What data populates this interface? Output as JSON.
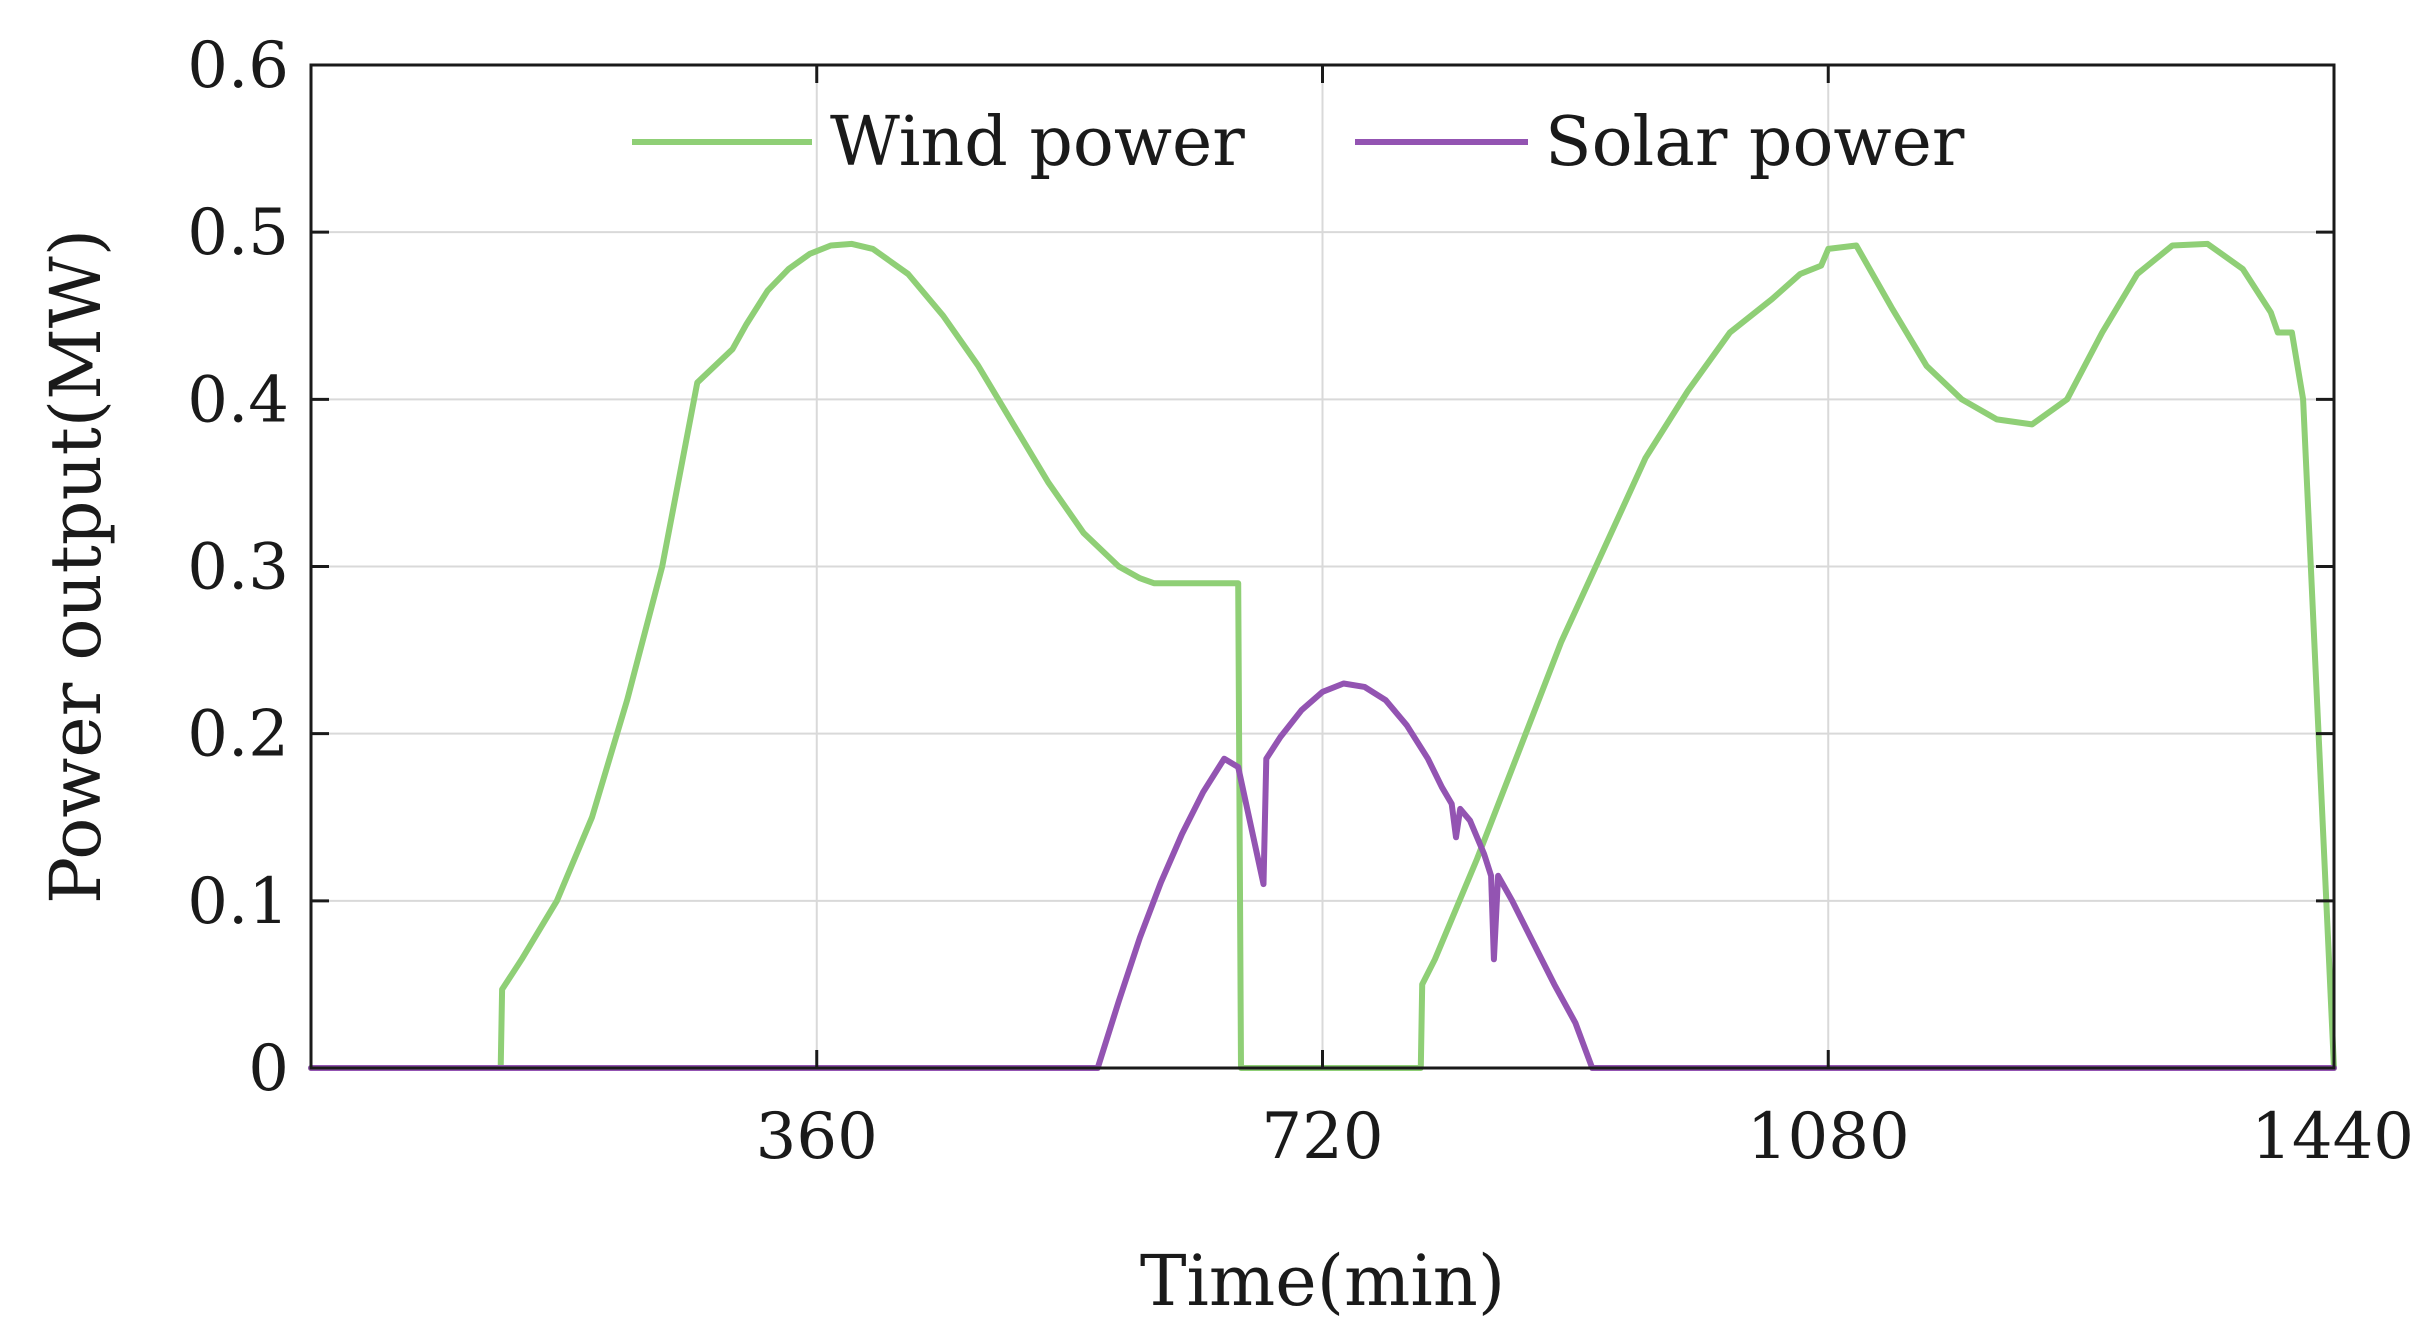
{
  "chart_data": {
    "type": "line",
    "xlabel": "Time(min)",
    "ylabel": "Power output(MW)",
    "xlim": [
      0,
      1440
    ],
    "ylim": [
      0,
      0.6
    ],
    "xticks": [
      360,
      720,
      1080,
      1440
    ],
    "xtick_labels": [
      "360",
      "720",
      "1080",
      "1440"
    ],
    "yticks": [
      0,
      0.1,
      0.2,
      0.3,
      0.4,
      0.5,
      0.6
    ],
    "ytick_labels": [
      "0",
      "0.1",
      "0.2",
      "0.3",
      "0.4",
      "0.5",
      "0.6"
    ],
    "grid": true,
    "legend": {
      "position": "top-center",
      "orientation": "horizontal"
    },
    "series": [
      {
        "name": "Wind power",
        "color": "#8fcf76",
        "x": [
          0,
          135,
          136,
          150,
          175,
          200,
          225,
          250,
          275,
          300,
          310,
          325,
          340,
          355,
          370,
          385,
          400,
          425,
          450,
          475,
          500,
          525,
          550,
          575,
          590,
          600,
          625,
          660,
          662,
          700,
          760,
          790,
          791,
          800,
          830,
          860,
          890,
          920,
          950,
          980,
          1010,
          1040,
          1060,
          1075,
          1080,
          1100,
          1125,
          1150,
          1175,
          1200,
          1225,
          1250,
          1275,
          1300,
          1325,
          1350,
          1375,
          1395,
          1400,
          1410,
          1418,
          1440
        ],
        "y": [
          0,
          0,
          0.047,
          0.065,
          0.1,
          0.15,
          0.22,
          0.3,
          0.41,
          0.43,
          0.445,
          0.465,
          0.478,
          0.487,
          0.492,
          0.493,
          0.49,
          0.475,
          0.45,
          0.42,
          0.385,
          0.35,
          0.32,
          0.3,
          0.293,
          0.29,
          0.29,
          0.29,
          0,
          0,
          0,
          0,
          0.05,
          0.065,
          0.125,
          0.19,
          0.255,
          0.31,
          0.365,
          0.405,
          0.44,
          0.46,
          0.475,
          0.48,
          0.49,
          0.492,
          0.455,
          0.42,
          0.4,
          0.388,
          0.385,
          0.4,
          0.44,
          0.475,
          0.492,
          0.493,
          0.478,
          0.452,
          0.44,
          0.44,
          0.4,
          0
        ]
      },
      {
        "name": "Solar power",
        "color": "#9354b2",
        "x": [
          0,
          560,
          575,
          590,
          605,
          620,
          635,
          650,
          660,
          678,
          680,
          690,
          705,
          720,
          735,
          750,
          765,
          780,
          795,
          805,
          812,
          815,
          818,
          825,
          835,
          840,
          842,
          845,
          855,
          870,
          885,
          900,
          912,
          1440
        ],
        "y": [
          0,
          0,
          0.04,
          0.078,
          0.111,
          0.14,
          0.165,
          0.185,
          0.18,
          0.11,
          0.185,
          0.198,
          0.214,
          0.225,
          0.23,
          0.228,
          0.22,
          0.205,
          0.185,
          0.168,
          0.158,
          0.138,
          0.155,
          0.148,
          0.128,
          0.115,
          0.065,
          0.115,
          0.1,
          0.075,
          0.05,
          0.027,
          0,
          0
        ]
      }
    ]
  }
}
